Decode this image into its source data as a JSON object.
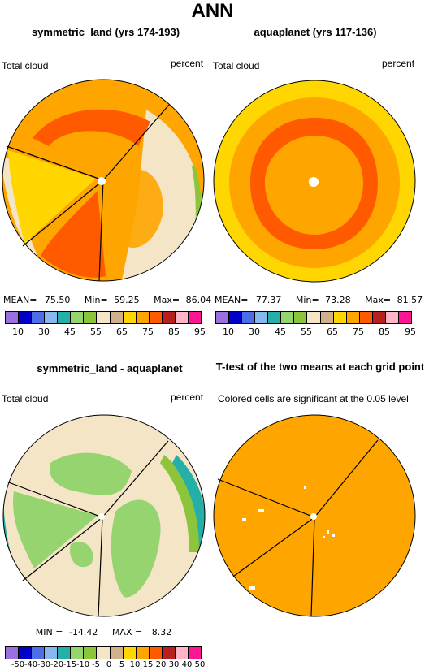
{
  "main_title": "ANN",
  "chart_data": [
    {
      "type": "heatmap",
      "title": "symmetric_land (yrs 174-193)",
      "left_label": "Total cloud",
      "right_label": "percent",
      "stats": {
        "mean_label": "MEAN=",
        "mean": "75.50",
        "min_label": "Min=",
        "min": "59.25",
        "max_label": "Max=",
        "max": "86.04"
      },
      "colorbar_ticks": [
        "10",
        "30",
        "45",
        "55",
        "65",
        "75",
        "85",
        "95"
      ],
      "colorbar_colors": [
        "#9a6fe0",
        "#0000c8",
        "#4b6fe6",
        "#86b8ee",
        "#24b0a8",
        "#96d470",
        "#8cc43c",
        "#f3e5c6",
        "#d2b08c",
        "#ffd600",
        "#ffa500",
        "#ff5a00",
        "#b82020",
        "#ffb4c8",
        "#ff1493"
      ]
    },
    {
      "type": "heatmap",
      "title": "aquaplanet (yrs 117-136)",
      "left_label": "Total cloud",
      "right_label": "percent",
      "stats": {
        "mean_label": "MEAN=",
        "mean": "77.37",
        "min_label": "Min=",
        "min": "73.28",
        "max_label": "Max=",
        "max": "81.57"
      },
      "colorbar_ticks": [
        "10",
        "30",
        "45",
        "55",
        "65",
        "75",
        "85",
        "95"
      ],
      "colorbar_colors": [
        "#9a6fe0",
        "#0000c8",
        "#4b6fe6",
        "#86b8ee",
        "#24b0a8",
        "#96d470",
        "#8cc43c",
        "#f3e5c6",
        "#d2b08c",
        "#ffd600",
        "#ffa500",
        "#ff5a00",
        "#b82020",
        "#ffb4c8",
        "#ff1493"
      ]
    },
    {
      "type": "heatmap",
      "title": "symmetric_land - aquaplanet",
      "left_label": "Total cloud",
      "right_label": "percent",
      "stats": {
        "min_label": "MIN =",
        "min": "-14.42",
        "max_label": "MAX =",
        "max": "8.32"
      },
      "colorbar_ticks": [
        "-50",
        "-40",
        "-30",
        "-20",
        "-15",
        "-10",
        "-5",
        "0",
        "5",
        "10",
        "15",
        "20",
        "30",
        "40",
        "50"
      ],
      "colorbar_colors": [
        "#9a6fe0",
        "#0000c8",
        "#4b6fe6",
        "#86b8ee",
        "#24b0a8",
        "#96d470",
        "#8cc43c",
        "#f3e5c6",
        "#d2b08c",
        "#ffd600",
        "#ffa500",
        "#ff5a00",
        "#b82020",
        "#ffb4c8",
        "#ff1493"
      ]
    },
    {
      "type": "heatmap",
      "title": "T-test of the two means at each grid point",
      "subtitle": "Colored cells are significant at the 0.05 level"
    }
  ],
  "colors": {
    "significant": "#ffa500",
    "land_line": "#000000"
  }
}
